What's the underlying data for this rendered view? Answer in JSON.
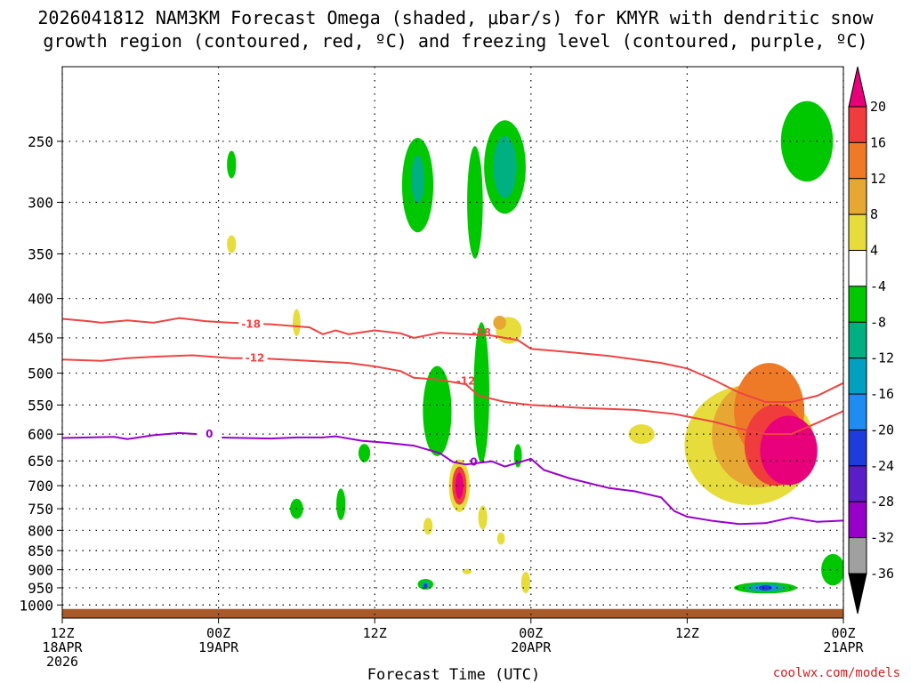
{
  "chart_data": {
    "type": "cross-section",
    "title_line1": "2026041812 NAM3KM Forecast Omega (shaded, μbar/s) for KMYR with dendritic snow",
    "title_line2": "growth region (contoured, red, ºC) and freezing level (contoured, purple, ºC)",
    "xlabel": "Forecast Time (UTC)",
    "ylabel": "",
    "y_axis": {
      "scale": "log-pressure",
      "range": [
        1040,
        200
      ],
      "ticks": [
        250,
        300,
        350,
        400,
        450,
        500,
        550,
        600,
        650,
        700,
        750,
        800,
        850,
        900,
        950,
        1000
      ]
    },
    "x_axis": {
      "range_hours": [
        0,
        60
      ],
      "ticks": [
        {
          "hour": 0,
          "line1": "12Z",
          "line2": "18APR",
          "line3": "2026"
        },
        {
          "hour": 12,
          "line1": "00Z",
          "line2": "19APR",
          "line3": ""
        },
        {
          "hour": 24,
          "line1": "12Z",
          "line2": "",
          "line3": ""
        },
        {
          "hour": 36,
          "line1": "00Z",
          "line2": "20APR",
          "line3": ""
        },
        {
          "hour": 48,
          "line1": "12Z",
          "line2": "",
          "line3": ""
        },
        {
          "hour": 60,
          "line1": "00Z",
          "line2": "21APR",
          "line3": ""
        }
      ]
    },
    "colorbar": {
      "levels": [
        20,
        16,
        12,
        8,
        4,
        -4,
        -8,
        -12,
        -16,
        -20,
        -24,
        -28,
        -32,
        -36
      ],
      "labels": [
        "20",
        "16",
        "12",
        "8",
        "4",
        "-4",
        "-8",
        "-12",
        "-16",
        "-20",
        "-24",
        "-28",
        "-32",
        "-36"
      ],
      "colors": [
        "#e8007a",
        "#f03c3c",
        "#ee7a28",
        "#e6a832",
        "#e6dc3c",
        "#ffffff",
        "#00c800",
        "#00b080",
        "#00a0c0",
        "#1e8cf0",
        "#1e3cdc",
        "#5a1ec8",
        "#9600c8",
        "#a0a0a0",
        "#000000"
      ]
    },
    "contours": [
      {
        "name": "dgz -18C",
        "label": "-18",
        "color": "#ee4444",
        "points": [
          [
            0,
            425
          ],
          [
            2,
            428
          ],
          [
            3,
            430
          ],
          [
            5,
            427
          ],
          [
            7,
            430
          ],
          [
            9,
            424
          ],
          [
            11,
            428
          ],
          [
            13,
            430
          ],
          [
            16,
            432
          ],
          [
            19,
            436
          ],
          [
            20,
            445
          ],
          [
            21,
            440
          ],
          [
            22,
            445
          ],
          [
            24,
            440
          ],
          [
            26,
            444
          ],
          [
            27,
            450
          ],
          [
            29,
            443
          ],
          [
            31,
            445
          ],
          [
            33,
            447
          ],
          [
            35,
            453
          ],
          [
            36,
            465
          ],
          [
            38,
            468
          ],
          [
            42,
            475
          ],
          [
            46,
            485
          ],
          [
            48,
            493
          ],
          [
            50,
            510
          ],
          [
            52,
            530
          ],
          [
            54,
            545
          ],
          [
            56,
            545
          ],
          [
            58,
            535
          ],
          [
            60,
            515
          ]
        ],
        "label_hour": 14.5,
        "label_p": 432
      },
      {
        "name": "dgz -12C",
        "label": "-12",
        "color": "#ee4444",
        "points": [
          [
            0,
            480
          ],
          [
            3,
            482
          ],
          [
            5,
            478
          ],
          [
            7,
            476
          ],
          [
            10,
            474
          ],
          [
            13,
            478
          ],
          [
            15,
            478
          ],
          [
            18,
            481
          ],
          [
            20,
            483
          ],
          [
            22,
            485
          ],
          [
            24,
            490
          ],
          [
            26,
            497
          ],
          [
            27,
            507
          ],
          [
            29,
            510
          ],
          [
            31,
            517
          ],
          [
            32,
            535
          ],
          [
            34,
            545
          ],
          [
            36,
            550
          ],
          [
            40,
            555
          ],
          [
            44,
            558
          ],
          [
            47,
            565
          ],
          [
            50,
            578
          ],
          [
            52,
            590
          ],
          [
            54,
            600
          ],
          [
            56,
            600
          ],
          [
            58,
            580
          ],
          [
            60,
            560
          ]
        ],
        "label_hour": 14.8,
        "label_p": 478
      },
      {
        "name": "freezing level 0C",
        "label": "0",
        "color": "#9900cc",
        "points": [
          [
            0,
            607
          ],
          [
            2,
            606
          ],
          [
            4,
            605
          ],
          [
            5,
            609
          ],
          [
            7,
            602
          ],
          [
            9,
            598
          ],
          [
            11,
            601
          ],
          [
            12,
            606
          ],
          [
            14,
            607
          ],
          [
            16,
            608
          ],
          [
            18,
            606
          ],
          [
            20,
            606
          ],
          [
            21,
            604
          ],
          [
            23,
            612
          ],
          [
            25,
            616
          ],
          [
            27,
            621
          ],
          [
            29,
            635
          ],
          [
            30,
            652
          ],
          [
            31,
            657
          ],
          [
            33,
            651
          ],
          [
            34,
            661
          ],
          [
            36,
            646
          ],
          [
            37,
            668
          ],
          [
            39,
            685
          ],
          [
            42,
            705
          ],
          [
            44,
            712
          ],
          [
            46,
            725
          ],
          [
            47,
            755
          ],
          [
            48,
            768
          ],
          [
            50,
            778
          ],
          [
            52,
            785
          ],
          [
            54,
            783
          ],
          [
            56,
            770
          ],
          [
            58,
            780
          ],
          [
            60,
            777
          ]
        ],
        "label_hour": 11.3,
        "label_p": 600
      }
    ],
    "annotations": [
      {
        "text": "-18",
        "hour": 32.2,
        "p": 443,
        "color": "#ee4444"
      },
      {
        "text": "-12",
        "hour": 31.0,
        "p": 512,
        "color": "#ee4444"
      },
      {
        "text": "0",
        "hour": 31.6,
        "p": 652,
        "color": "#9900cc"
      }
    ],
    "shaded_regions": [
      {
        "color": "#00c800",
        "hour": 13.0,
        "p": 268,
        "w": 0.35,
        "h": 22
      },
      {
        "color": "#e6dc3c",
        "hour": 13.0,
        "p": 340,
        "w": 0.35,
        "h": 18
      },
      {
        "color": "#e6dc3c",
        "hour": 18.0,
        "p": 430,
        "w": 0.3,
        "h": 35
      },
      {
        "color": "#00c800",
        "hour": 18.0,
        "p": 750,
        "w": 0.5,
        "h": 45
      },
      {
        "color": "#00c800",
        "hour": 21.4,
        "p": 740,
        "w": 0.35,
        "h": 70
      },
      {
        "color": "#00c800",
        "hour": 23.2,
        "p": 635,
        "w": 0.45,
        "h": 35
      },
      {
        "color": "#00c800",
        "hour": 27.3,
        "p": 285,
        "w": 1.2,
        "h": 80
      },
      {
        "color": "#00b080",
        "hour": 27.3,
        "p": 280,
        "w": 0.5,
        "h": 40
      },
      {
        "color": "#00c800",
        "hour": 28.8,
        "p": 560,
        "w": 1.1,
        "h": 150
      },
      {
        "color": "#00c800",
        "hour": 31.7,
        "p": 300,
        "w": 0.6,
        "h": 100
      },
      {
        "color": "#00c800",
        "hour": 32.2,
        "p": 530,
        "w": 0.6,
        "h": 220
      },
      {
        "color": "#00c800",
        "hour": 34.0,
        "p": 270,
        "w": 1.6,
        "h": 75
      },
      {
        "color": "#00b080",
        "hour": 34.0,
        "p": 270,
        "w": 0.9,
        "h": 50
      },
      {
        "color": "#e6dc3c",
        "hour": 34.3,
        "p": 440,
        "w": 1.0,
        "h": 35
      },
      {
        "color": "#e6a832",
        "hour": 33.6,
        "p": 430,
        "w": 0.5,
        "h": 18
      },
      {
        "color": "#e6dc3c",
        "hour": 30.5,
        "p": 700,
        "w": 0.8,
        "h": 110
      },
      {
        "color": "#f03c3c",
        "hour": 30.5,
        "p": 700,
        "w": 0.55,
        "h": 80
      },
      {
        "color": "#e8007a",
        "hour": 30.5,
        "p": 700,
        "w": 0.3,
        "h": 55
      },
      {
        "color": "#e6dc3c",
        "hour": 28.1,
        "p": 790,
        "w": 0.35,
        "h": 40
      },
      {
        "color": "#00c800",
        "hour": 27.9,
        "p": 940,
        "w": 0.6,
        "h": 30
      },
      {
        "color": "#00b080",
        "hour": 27.9,
        "p": 940,
        "w": 0.35,
        "h": 20
      },
      {
        "color": "#1e3cdc",
        "hour": 27.9,
        "p": 945,
        "w": 0.15,
        "h": 10
      },
      {
        "color": "#e6dc3c",
        "hour": 32.3,
        "p": 770,
        "w": 0.35,
        "h": 55
      },
      {
        "color": "#e6dc3c",
        "hour": 33.7,
        "p": 820,
        "w": 0.3,
        "h": 30
      },
      {
        "color": "#e6dc3c",
        "hour": 31.1,
        "p": 905,
        "w": 0.35,
        "h": 15
      },
      {
        "color": "#e6dc3c",
        "hour": 35.6,
        "p": 935,
        "w": 0.35,
        "h": 60
      },
      {
        "color": "#00c800",
        "hour": 35.0,
        "p": 640,
        "w": 0.3,
        "h": 45
      },
      {
        "color": "#e6dc3c",
        "hour": 44.5,
        "p": 600,
        "w": 1.0,
        "h": 35
      },
      {
        "color": "#e6dc3c",
        "hour": 52.8,
        "p": 620,
        "w": 5.0,
        "h": 220
      },
      {
        "color": "#e6a832",
        "hour": 53.5,
        "p": 600,
        "w": 3.6,
        "h": 190
      },
      {
        "color": "#ee7a28",
        "hour": 54.3,
        "p": 560,
        "w": 2.7,
        "h": 160
      },
      {
        "color": "#f03c3c",
        "hour": 54.8,
        "p": 620,
        "w": 2.4,
        "h": 150
      },
      {
        "color": "#e8007a",
        "hour": 55.8,
        "p": 630,
        "w": 2.2,
        "h": 130
      },
      {
        "color": "#00c800",
        "hour": 57.2,
        "p": 250,
        "w": 2.0,
        "h": 60
      },
      {
        "color": "#00c800",
        "hour": 54.0,
        "p": 950,
        "w": 2.4,
        "h": 32
      },
      {
        "color": "#00b080",
        "hour": 54.0,
        "p": 950,
        "w": 1.6,
        "h": 24
      },
      {
        "color": "#1e8cf0",
        "hour": 54.0,
        "p": 950,
        "w": 1.0,
        "h": 16
      },
      {
        "color": "#1e3cdc",
        "hour": 54.0,
        "p": 950,
        "w": 0.5,
        "h": 8
      },
      {
        "color": "#00c800",
        "hour": 59.2,
        "p": 900,
        "w": 0.9,
        "h": 85
      }
    ],
    "terrain": {
      "color": "#a85a2a",
      "top_p": 1012
    }
  },
  "credit": "coolwx.com/models"
}
